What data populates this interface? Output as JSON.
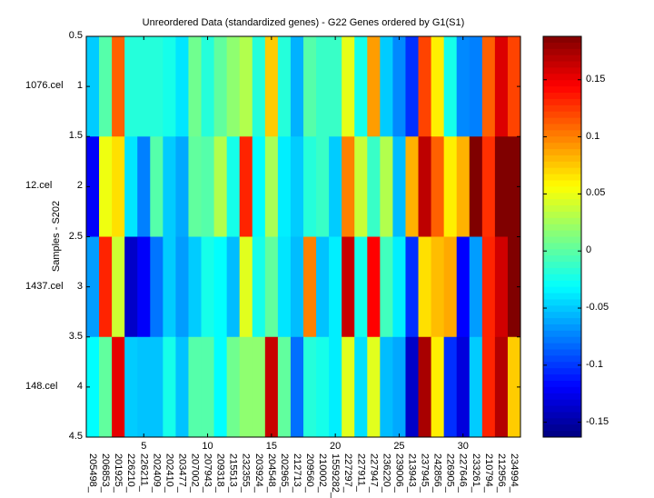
{
  "chart_data": {
    "type": "heatmap",
    "title": "Unreordered Data (standardized genes) - G22 Genes ordered by G1(S1)",
    "ylabel": "Samples - S202",
    "xlabel": "",
    "row_labels": [
      "1076.cel",
      "12.cel",
      "1437.cel",
      "148.cel"
    ],
    "ytick_labels": [
      "0.5",
      "1",
      "1.5",
      "2",
      "2.5",
      "3",
      "3.5",
      "4",
      "4.5"
    ],
    "xtick_labels": [
      "5",
      "10",
      "15",
      "20",
      "25",
      "30"
    ],
    "xticks": [
      5,
      10,
      15,
      20,
      25,
      30
    ],
    "column_labels": [
      "205498_",
      "206853_",
      "201925_",
      "226210_",
      "226211_",
      "202409_",
      "202410_",
      "203477_",
      "207002_",
      "207943_",
      "209318_",
      "215513_",
      "232355_",
      "203924_",
      "204548_",
      "202965_",
      "212713_",
      "209560_",
      "210002_",
      "1559282_",
      "227297_",
      "227911_",
      "227947_",
      "236220_",
      "239006_",
      "213943_",
      "237945_",
      "242856_",
      "226905_",
      "227646_",
      "233261_",
      "210794_",
      "212956_",
      "234994_"
    ],
    "colormap": "jet",
    "clim": [
      -0.163,
      0.188
    ],
    "colorbar_ticks": [
      0.15,
      0.1,
      0.05,
      0,
      -0.05,
      -0.1,
      -0.15
    ],
    "colorbar_tick_labels": [
      "0.15",
      "0.1",
      "0.05",
      "0",
      "-0.05",
      "-0.1",
      "-0.15"
    ],
    "values": [
      [
        -0.049,
        -0.002,
        0.111,
        -0.019,
        -0.019,
        -0.019,
        -0.024,
        -0.04,
        0.007,
        -0.019,
        0.002,
        0.018,
        0.03,
        -0.019,
        0.074,
        -0.019,
        -0.058,
        -0.002,
        -0.012,
        -0.012,
        0.048,
        -0.024,
        0.09,
        -0.049,
        -0.072,
        -0.103,
        0.121,
        0.062,
        -0.024,
        -0.072,
        -0.075,
        0.111,
        0.156,
        0.121
      ],
      [
        -0.121,
        0.051,
        0.067,
        -0.04,
        -0.075,
        -0.002,
        -0.049,
        -0.061,
        0.002,
        -0.002,
        0.03,
        -0.024,
        0.132,
        -0.031,
        0.027,
        -0.037,
        -0.049,
        -0.019,
        -0.012,
        -0.049,
        0.1,
        0.037,
        -0.012,
        0.03,
        -0.054,
        0.083,
        0.167,
        0.111,
        0.062,
        0.083,
        0.188,
        0.128,
        0.188,
        0.188
      ],
      [
        -0.065,
        0.132,
        0.039,
        -0.138,
        -0.121,
        -0.079,
        -0.049,
        -0.065,
        -0.049,
        -0.024,
        -0.031,
        -0.054,
        0.046,
        -0.024,
        0.002,
        -0.04,
        -0.054,
        0.1,
        -0.052,
        -0.037,
        0.163,
        -0.024,
        0.144,
        -0.009,
        -0.037,
        -0.103,
        0.067,
        0.079,
        0.086,
        -0.119,
        -0.065,
        0.132,
        0.16,
        0.188
      ],
      [
        -0.031,
        0.002,
        0.153,
        -0.049,
        -0.052,
        -0.052,
        -0.024,
        -0.052,
        -0.002,
        -0.002,
        -0.031,
        0.007,
        0.018,
        0.018,
        0.163,
        0.002,
        -0.081,
        -0.019,
        -0.024,
        -0.037,
        0.046,
        -0.042,
        0.046,
        -0.054,
        -0.061,
        -0.138,
        0.174,
        0.062,
        -0.103,
        -0.131,
        -0.049,
        0.132,
        0.17,
        0.074
      ]
    ]
  }
}
